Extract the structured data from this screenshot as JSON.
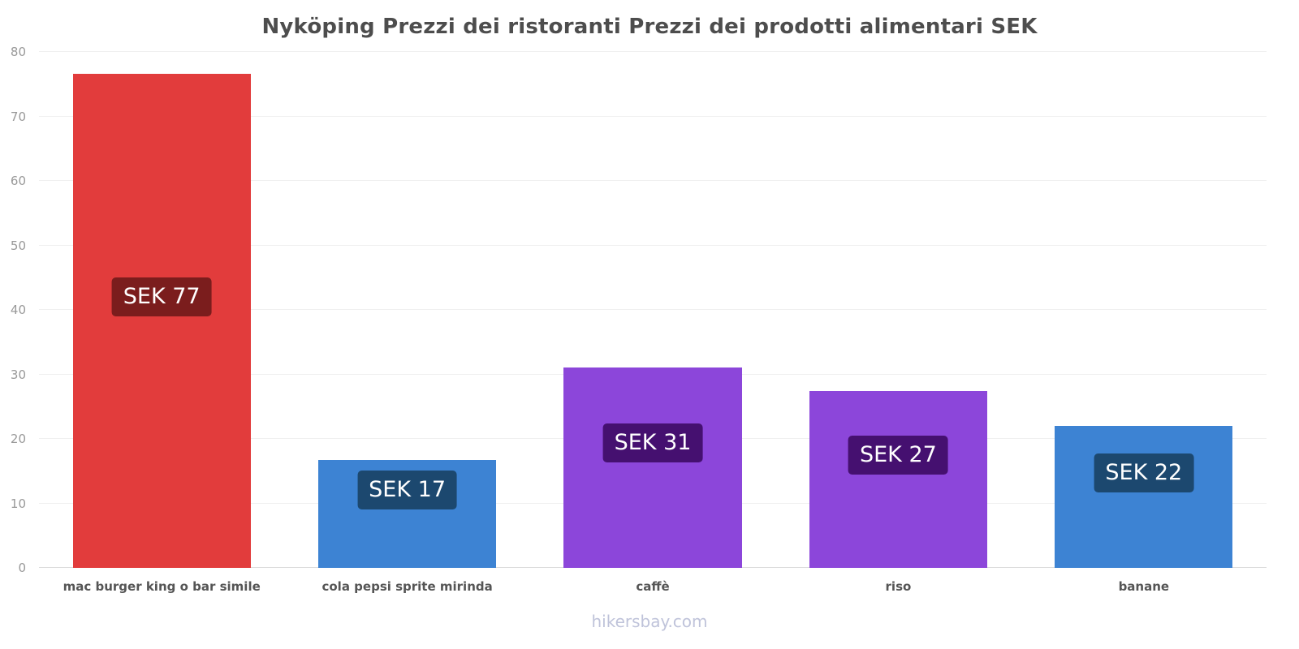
{
  "page": {
    "watermark": "hikersbay.com"
  },
  "chart_data": {
    "type": "bar",
    "title": "Nyköping Prezzi dei ristoranti Prezzi dei prodotti alimentari SEK",
    "categories": [
      "mac burger king o bar simile",
      "cola pepsi sprite mirinda",
      "caffè",
      "riso",
      "banane"
    ],
    "values": [
      76.6,
      16.7,
      31.1,
      27.4,
      22.0
    ],
    "value_labels": [
      "SEK 77",
      "SEK 17",
      "SEK 31",
      "SEK 27",
      "SEK 22"
    ],
    "bar_colors": [
      "#e23c3c",
      "#3d83d3",
      "#8c46da",
      "#8c46da",
      "#3d83d3"
    ],
    "badge_colors": [
      "#7b1d1d",
      "#1c486f",
      "#451070",
      "#451070",
      "#1c486f"
    ],
    "currency": "SEK",
    "xlabel": "",
    "ylabel": "",
    "ylim": [
      0,
      80
    ],
    "yticks": [
      0,
      10,
      20,
      30,
      40,
      50,
      60,
      70,
      80
    ],
    "grid": true,
    "legend": false
  }
}
